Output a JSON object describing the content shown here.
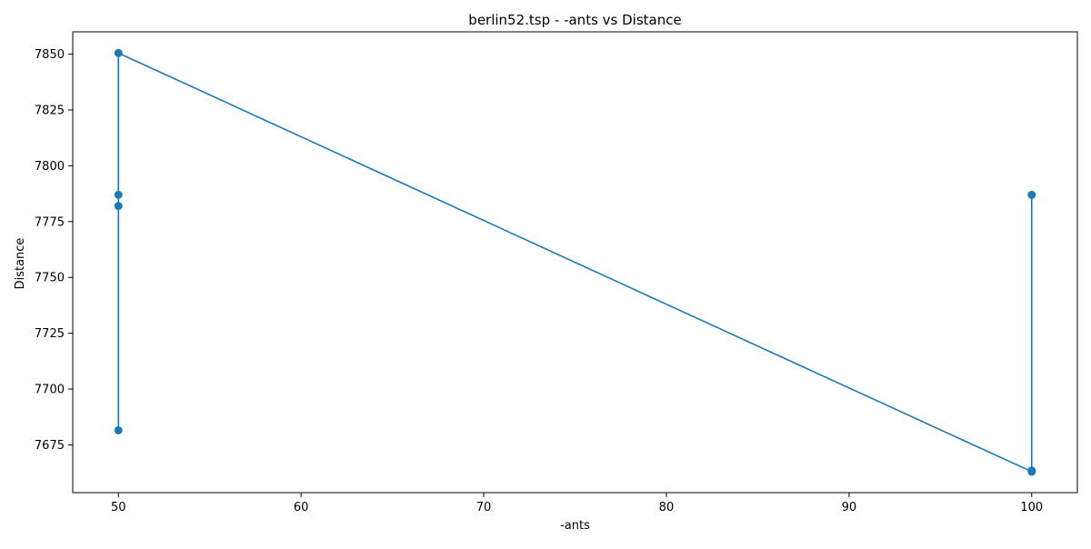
{
  "chart_data": {
    "type": "line",
    "title": "berlin52.tsp - -ants vs Distance",
    "xlabel": "-ants",
    "ylabel": "Distance",
    "xlim": [
      47.5,
      102.5
    ],
    "ylim": [
      7653.6,
      7860.0
    ],
    "x_ticks": [
      50,
      60,
      70,
      80,
      90,
      100
    ],
    "y_ticks": [
      7675,
      7700,
      7725,
      7750,
      7775,
      7800,
      7825,
      7850
    ],
    "grid": false,
    "legend": "none",
    "series": [
      {
        "color": "#1f77b4",
        "marker": "circle",
        "points": [
          {
            "x": 50,
            "y": 7681.5
          },
          {
            "x": 50,
            "y": 7782.0
          },
          {
            "x": 50,
            "y": 7787.0
          },
          {
            "x": 50,
            "y": 7850.5
          },
          {
            "x": 100,
            "y": 7663.0
          },
          {
            "x": 100,
            "y": 7663.5
          },
          {
            "x": 100,
            "y": 7787.0
          }
        ]
      }
    ]
  }
}
